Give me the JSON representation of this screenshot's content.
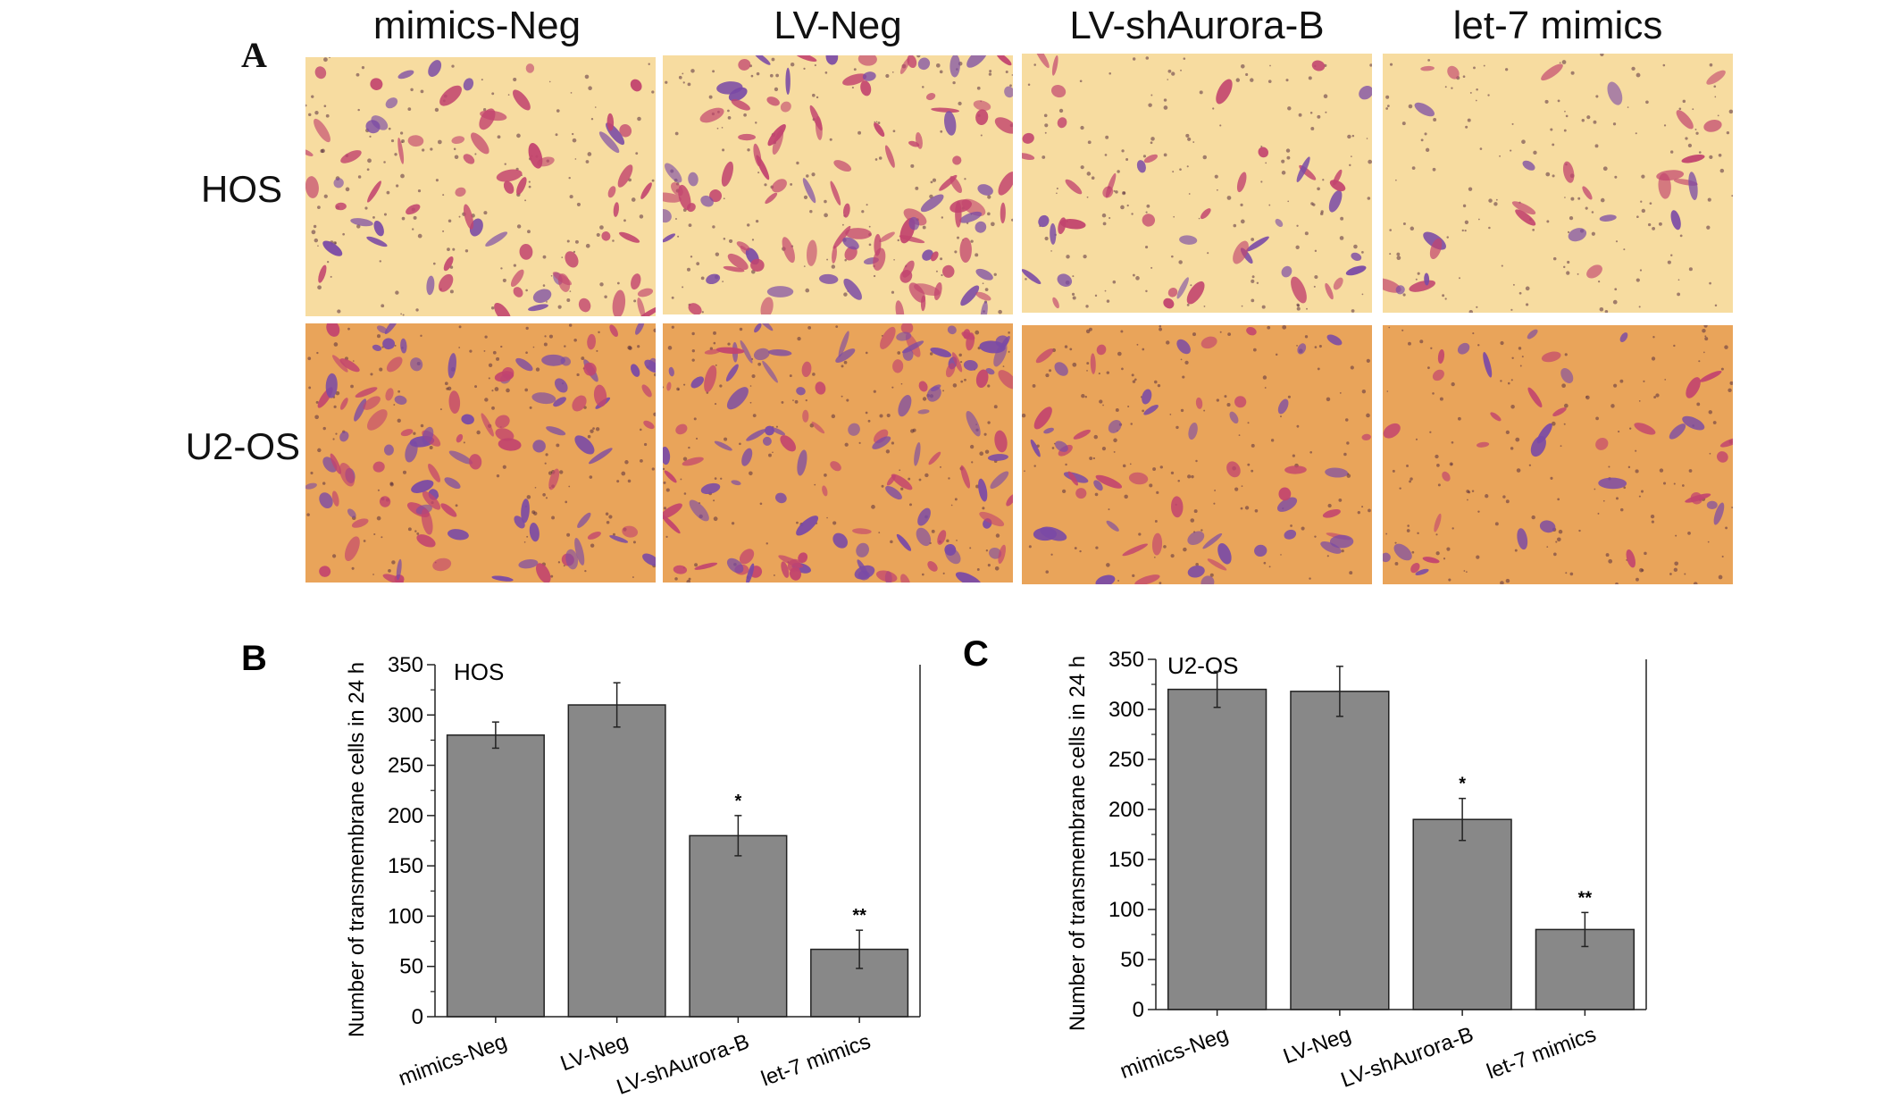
{
  "panel_a": {
    "letter": "A",
    "column_titles": [
      "mimics-Neg",
      "LV-Neg",
      "LV-shAurora-B",
      "let-7 mimics"
    ],
    "row_labels": [
      "HOS",
      "U2-OS"
    ],
    "colors": {
      "hos_background": "#f7dca0",
      "u2os_background": "#e9a45a",
      "cell_pink": "#c2446e",
      "cell_purple": "#7a4aa6",
      "pore_dark": "#5a3040"
    }
  },
  "chart_data": [
    {
      "type": "bar",
      "panel_letter": "B",
      "inset_label": "HOS",
      "categories": [
        "mimics-Neg",
        "LV-Neg",
        "LV-shAurora-B",
        "let-7 mimics"
      ],
      "values": [
        280,
        310,
        180,
        67
      ],
      "error": [
        13,
        22,
        20,
        19
      ],
      "significance": [
        "",
        "",
        "*",
        "**"
      ],
      "ylabel": "Number of transmembrane cells in 24 h",
      "xlabel": "",
      "ylim": [
        0,
        350
      ],
      "yticks": [
        0,
        50,
        100,
        150,
        200,
        250,
        300,
        350
      ],
      "bar_color": "#888888",
      "grid": false
    },
    {
      "type": "bar",
      "panel_letter": "C",
      "inset_label": "U2-OS",
      "categories": [
        "mimics-Neg",
        "LV-Neg",
        "LV-shAurora-B",
        "let-7 mimics"
      ],
      "values": [
        320,
        318,
        190,
        80
      ],
      "error": [
        18,
        25,
        21,
        17
      ],
      "significance": [
        "",
        "",
        "*",
        "**"
      ],
      "ylabel": "Number of transmembrane cells in 24 h",
      "xlabel": "",
      "ylim": [
        0,
        350
      ],
      "yticks": [
        0,
        50,
        100,
        150,
        200,
        250,
        300,
        350
      ],
      "bar_color": "#888888",
      "grid": false
    }
  ]
}
